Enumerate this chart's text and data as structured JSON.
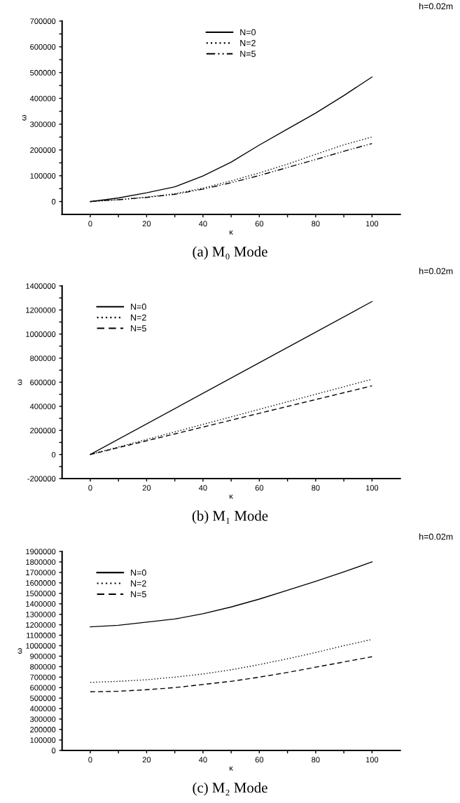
{
  "chart_data": [
    {
      "type": "line",
      "title": "(a) M₀ Mode",
      "xlabel": "κ",
      "ylabel": "ω",
      "annotations": [
        "h=0.02m"
      ],
      "legend": "top",
      "grid": false,
      "xlim": [
        -10,
        110
      ],
      "xticks": [
        0,
        {
          "value": 10,
          "label": null
        },
        20,
        {
          "value": 30,
          "label": null
        },
        40,
        {
          "value": 50,
          "label": null
        },
        60,
        {
          "value": 70,
          "label": null
        },
        80,
        {
          "value": 90,
          "label": null
        },
        100
      ],
      "ylim": [
        -50000,
        700000
      ],
      "yticks": [
        0,
        {
          "value": 50000,
          "label": null
        },
        100000,
        {
          "value": 150000,
          "label": null
        },
        200000,
        {
          "value": 250000,
          "label": null
        },
        300000,
        {
          "value": 350000,
          "label": null
        },
        400000,
        {
          "value": 450000,
          "label": null
        },
        500000,
        {
          "value": 550000,
          "label": null
        },
        600000,
        {
          "value": 650000,
          "label": null
        },
        700000
      ],
      "x": [
        0,
        10,
        20,
        30,
        40,
        50,
        60,
        70,
        80,
        90,
        100
      ],
      "series": [
        {
          "name": "N=0",
          "color": "#000000",
          "line_style": "solid",
          "values": [
            0,
            14000,
            34000,
            57000,
            99000,
            153000,
            219000,
            281000,
            343000,
            411000,
            483000
          ]
        },
        {
          "name": "N=2",
          "color": "#000000",
          "line_style": "dotted",
          "values": [
            0,
            7000,
            17000,
            30000,
            52000,
            80000,
            111000,
            145000,
            183000,
            220000,
            250000
          ]
        },
        {
          "name": "N=5",
          "color": "#000000",
          "line_style": "dashdot",
          "values": [
            0,
            7000,
            16000,
            28000,
            48000,
            73000,
            101000,
            132000,
            163000,
            195000,
            225000
          ]
        }
      ]
    },
    {
      "type": "line",
      "title": "(b) M₁ Mode",
      "xlabel": "κ",
      "ylabel": "ω",
      "annotations": [
        "h=0.02m"
      ],
      "legend": "top left",
      "grid": false,
      "xlim": [
        -10,
        110
      ],
      "xticks": [
        0,
        {
          "value": 10,
          "label": null
        },
        20,
        {
          "value": 30,
          "label": null
        },
        40,
        {
          "value": 50,
          "label": null
        },
        60,
        {
          "value": 70,
          "label": null
        },
        80,
        {
          "value": 90,
          "label": null
        },
        100
      ],
      "ylim": [
        -200000,
        1400000
      ],
      "yticks": [
        -200000,
        {
          "value": -100000,
          "label": null
        },
        0,
        {
          "value": 100000,
          "label": null
        },
        200000,
        {
          "value": 300000,
          "label": null
        },
        400000,
        {
          "value": 500000,
          "label": null
        },
        600000,
        {
          "value": 700000,
          "label": null
        },
        800000,
        {
          "value": 900000,
          "label": null
        },
        1000000,
        {
          "value": 1100000,
          "label": null
        },
        1200000,
        {
          "value": 1300000,
          "label": null
        },
        1400000
      ],
      "x": [
        0,
        100
      ],
      "series": [
        {
          "name": "N=0",
          "color": "#000000",
          "line_style": "solid",
          "values": [
            0,
            1270000
          ]
        },
        {
          "name": "N=2",
          "color": "#000000",
          "line_style": "dotted",
          "values": [
            0,
            625000
          ]
        },
        {
          "name": "N=5",
          "color": "#000000",
          "line_style": "dashed",
          "values": [
            0,
            570000
          ]
        }
      ]
    },
    {
      "type": "line",
      "title": "(c) M₂ Mode",
      "xlabel": "κ",
      "ylabel": "ω",
      "annotations": [
        "h=0.02m"
      ],
      "legend": "top left",
      "grid": false,
      "xlim": [
        -10,
        110
      ],
      "xticks": [
        0,
        {
          "value": 10,
          "label": null
        },
        20,
        {
          "value": 30,
          "label": null
        },
        40,
        {
          "value": 50,
          "label": null
        },
        60,
        {
          "value": 70,
          "label": null
        },
        80,
        {
          "value": 90,
          "label": null
        },
        100
      ],
      "ylim": [
        0,
        1900000
      ],
      "yticks": [
        0,
        100000,
        200000,
        300000,
        400000,
        500000,
        600000,
        700000,
        800000,
        900000,
        1000000,
        1100000,
        1200000,
        1300000,
        1400000,
        1500000,
        1600000,
        1700000,
        1800000,
        1900000
      ],
      "x": [
        0,
        10,
        20,
        30,
        40,
        50,
        60,
        70,
        80,
        90,
        100
      ],
      "series": [
        {
          "name": "N=0",
          "color": "#000000",
          "line_style": "solid",
          "values": [
            1180000,
            1195000,
            1225000,
            1255000,
            1305000,
            1370000,
            1445000,
            1530000,
            1615000,
            1705000,
            1800000
          ]
        },
        {
          "name": "N=2",
          "color": "#000000",
          "line_style": "dotted",
          "values": [
            650000,
            660000,
            675000,
            700000,
            730000,
            770000,
            820000,
            875000,
            935000,
            1000000,
            1060000
          ]
        },
        {
          "name": "N=5",
          "color": "#000000",
          "line_style": "dashed",
          "values": [
            560000,
            565000,
            580000,
            600000,
            630000,
            660000,
            700000,
            745000,
            795000,
            845000,
            895000
          ]
        }
      ]
    }
  ]
}
